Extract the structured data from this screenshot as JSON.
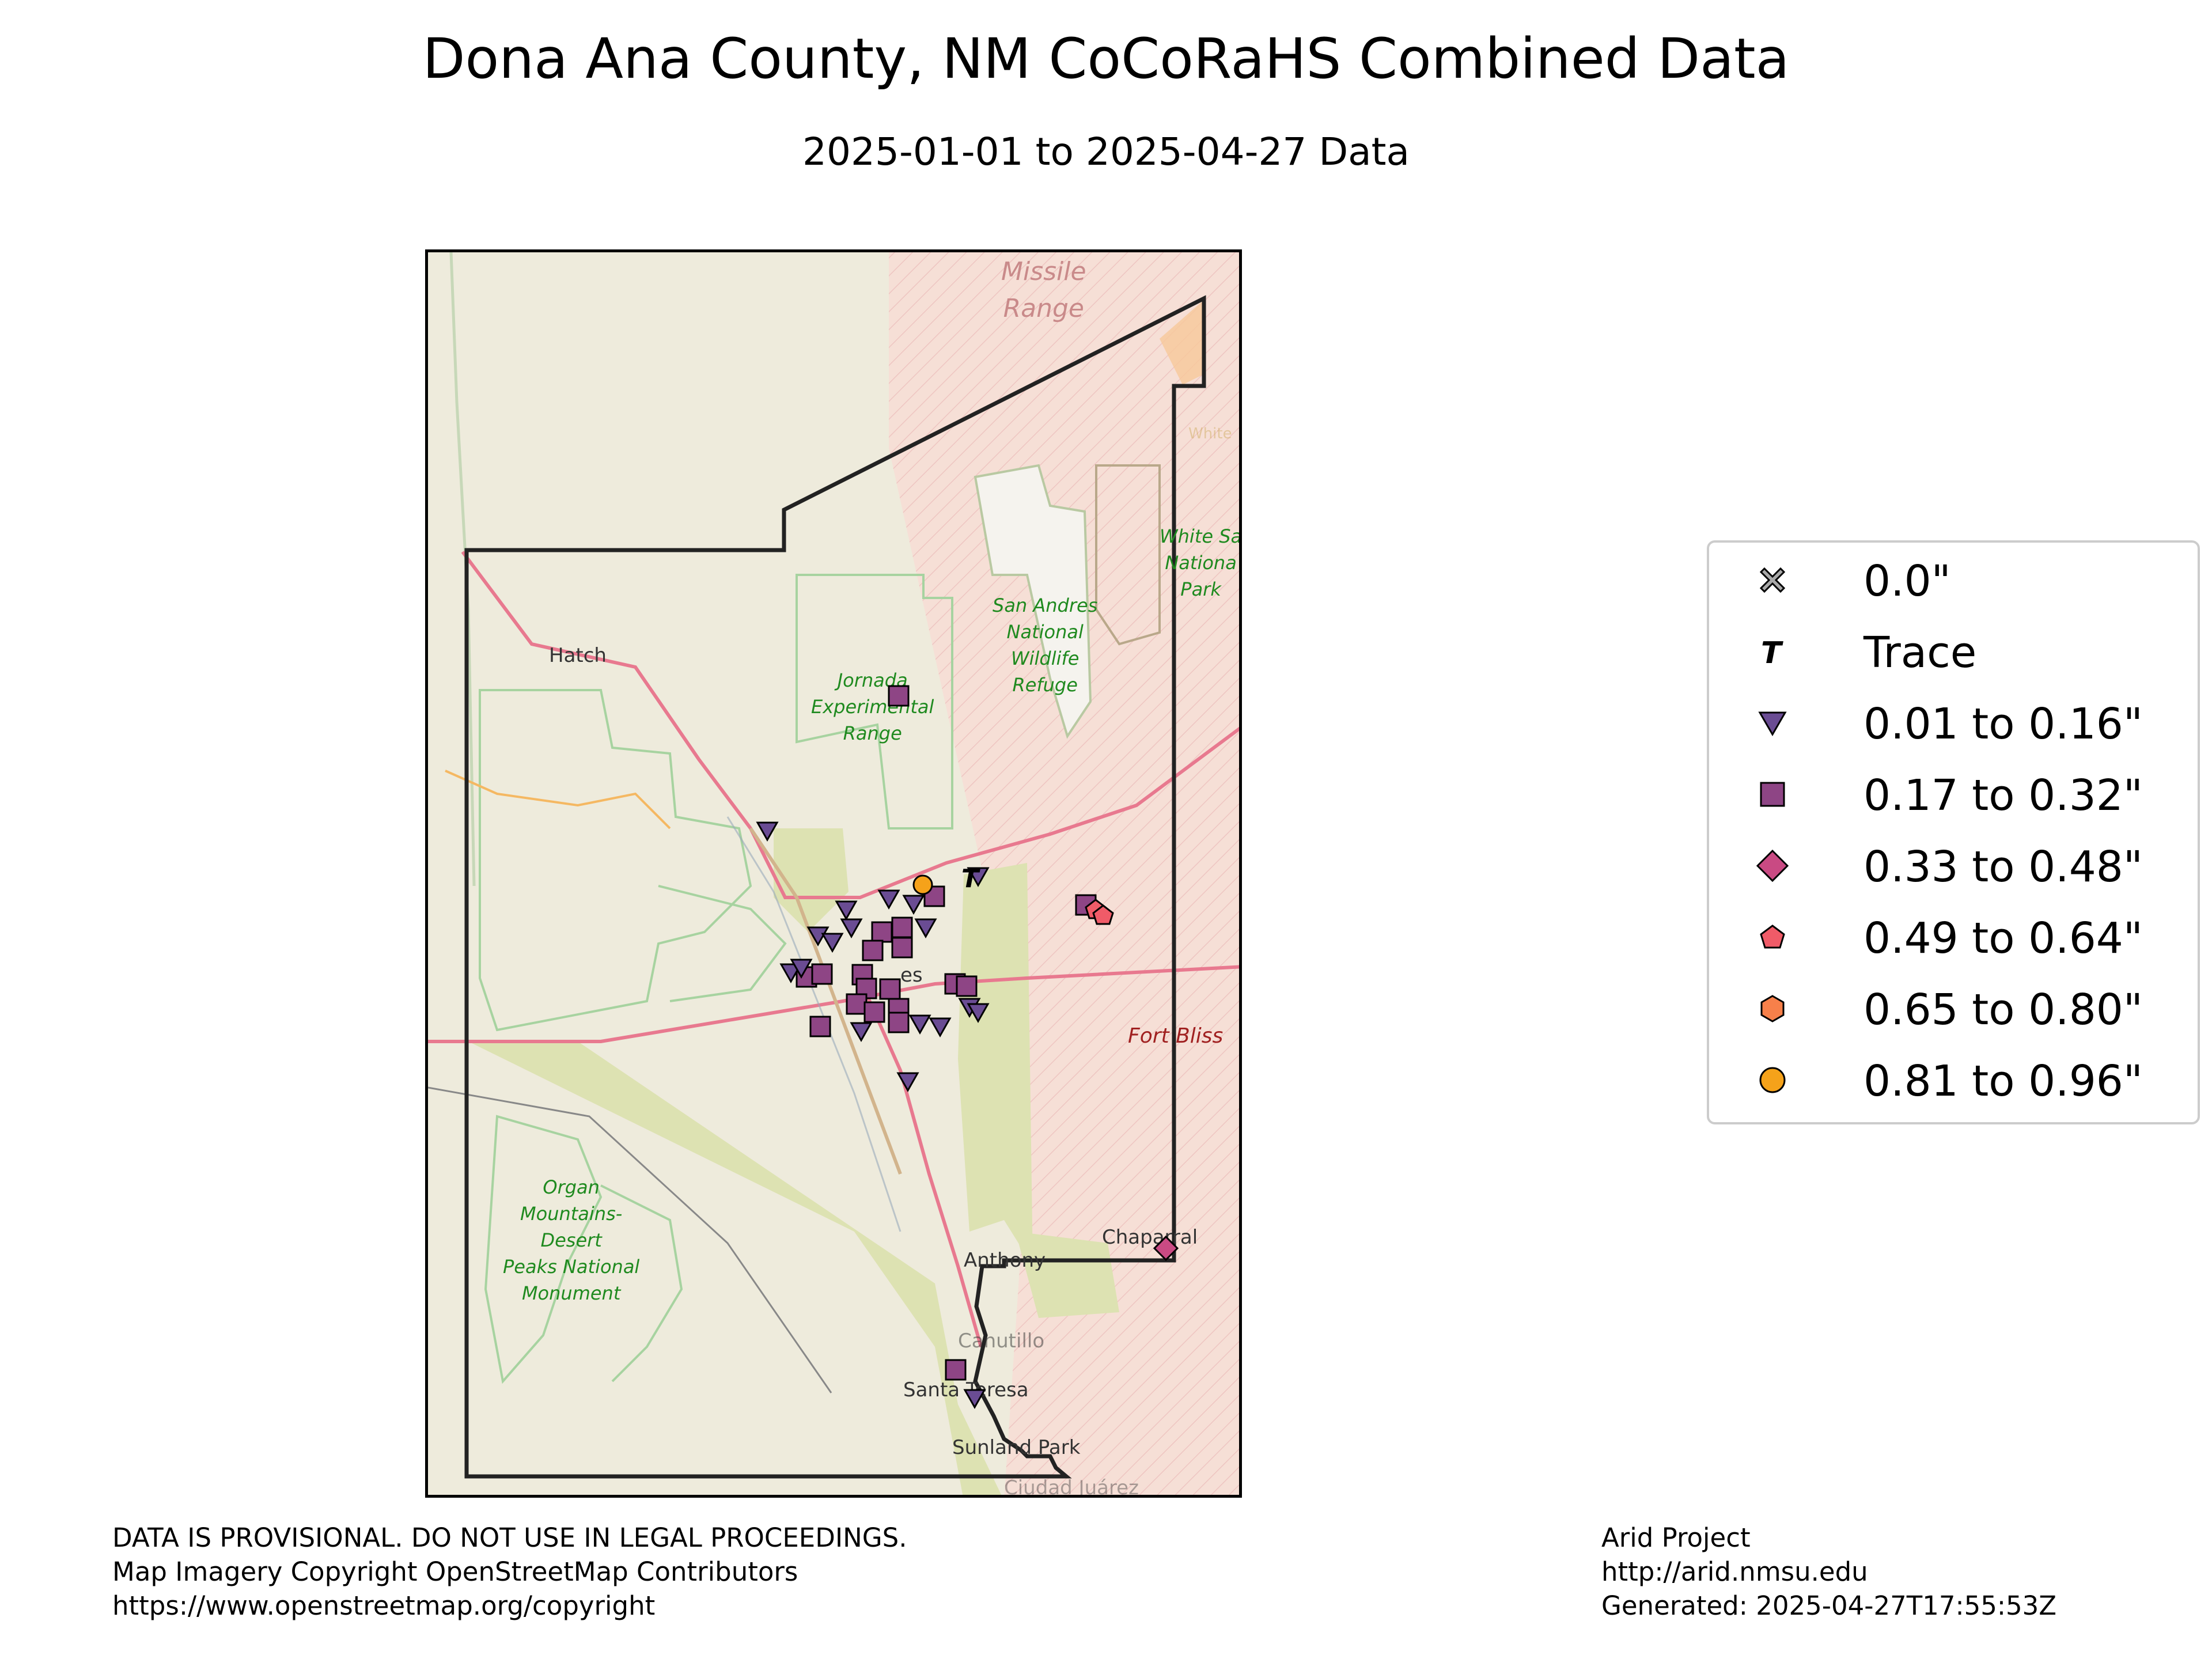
{
  "title": "Dona Ana County, NM CoCoRaHS Combined Data",
  "subtitle": "2025-01-01 to 2025-04-27 Data",
  "map": {
    "places": {
      "hatch": "Hatch",
      "las_cruces": "es",
      "anthony": "Anthony",
      "chaparral": "Chaparral",
      "canutillo": "Canutillo",
      "santa_teresa": "Santa Teresa",
      "sunland_park": "Sunland Park",
      "ciudad_juarez": "Ciudad Juárez",
      "white": "White"
    },
    "areas": {
      "missile_range": "Missile\nRange",
      "san_andres": "San Andres\nNational\nWildlife\nRefuge",
      "white_sands": "White Sa\nNationa\nPark",
      "jornada": "Jornada\nExperimental\nRange",
      "organ_mountains": "Organ\nMountains-\nDesert\nPeaks National\nMonument",
      "fort_bliss": "Fort Bliss"
    },
    "colors": {
      "land": "#efece3",
      "national_land": "#dde2b2",
      "military": "#f6dfd6",
      "highway": "#e8798f",
      "secondary": "#f5b862",
      "boundary_green": "#9ccf94",
      "county_border": "#222222"
    }
  },
  "legend": {
    "items": [
      {
        "label": "0.0\"",
        "marker": "cross",
        "color": "#a9a9a9"
      },
      {
        "label": "Trace",
        "marker": "T",
        "color": "#000000"
      },
      {
        "label": "0.01 to 0.16\"",
        "marker": "triangle-down",
        "color": "#6a4c93"
      },
      {
        "label": "0.17 to 0.32\"",
        "marker": "square",
        "color": "#8e4585"
      },
      {
        "label": "0.33 to 0.48\"",
        "marker": "diamond",
        "color": "#c94a83"
      },
      {
        "label": "0.49 to 0.64\"",
        "marker": "pentagon",
        "color": "#f05b68"
      },
      {
        "label": "0.65 to 0.80\"",
        "marker": "hexagon",
        "color": "#f7804a"
      },
      {
        "label": "0.81 to 0.96\"",
        "marker": "circle",
        "color": "#f5a21a"
      }
    ]
  },
  "footer": {
    "left": "DATA IS PROVISIONAL. DO NOT USE IN LEGAL PROCEEDINGS.\nMap Imagery Copyright OpenStreetMap Contributors\nhttps://www.openstreetmap.org/copyright",
    "right": "Arid Project\nhttp://arid.nmsu.edu\nGenerated: 2025-04-27T17:55:53Z"
  }
}
